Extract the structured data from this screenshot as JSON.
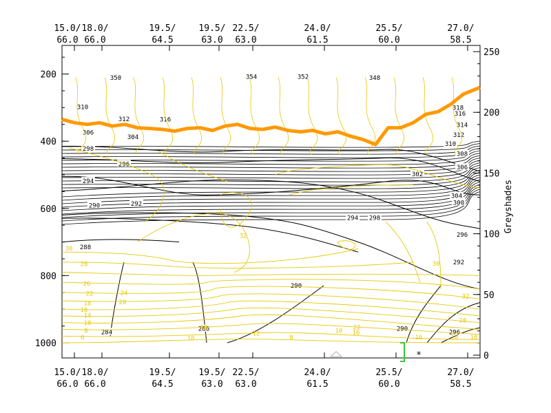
{
  "chart_data": {
    "type": "line",
    "title": "",
    "y_left": {
      "ticks": [
        200,
        400,
        600,
        800,
        1000
      ],
      "range": [
        115,
        1045
      ]
    },
    "y_right": {
      "label": "Greyshades",
      "ticks": [
        0,
        50,
        100,
        150,
        200,
        250
      ],
      "range": [
        0,
        250
      ]
    },
    "x_top_labels": [
      {
        "top": "15.0/",
        "bottom": "66.0"
      },
      {
        "top": "18.0/",
        "bottom": "66.0"
      },
      {
        "top": "19.5/",
        "bottom": "64.5"
      },
      {
        "top": "19.5/",
        "bottom": "63.0"
      },
      {
        "top": "22.5/",
        "bottom": "63.0"
      },
      {
        "top": "24.0/",
        "bottom": "61.5"
      },
      {
        "top": "25.5/",
        "bottom": "60.0"
      },
      {
        "top": "27.0/",
        "bottom": "58.5"
      }
    ],
    "x_bottom_labels": [
      {
        "top": "15.0/",
        "bottom": "66.0"
      },
      {
        "top": "18.0/",
        "bottom": "66.0"
      },
      {
        "top": "19.5/",
        "bottom": "64.5"
      },
      {
        "top": "19.5/",
        "bottom": "63.0"
      },
      {
        "top": "22.5/",
        "bottom": "63.0"
      },
      {
        "top": "24.0/",
        "bottom": "61.5"
      },
      {
        "top": "25.5/",
        "bottom": "60.0"
      },
      {
        "top": "27.0/",
        "bottom": "58.5"
      }
    ],
    "theta_contour_labels": [
      "288",
      "290",
      "292",
      "294",
      "296",
      "298",
      "300",
      "302",
      "304",
      "306",
      "308",
      "310",
      "312",
      "314",
      "316",
      "318",
      "350",
      "352",
      "354",
      "348"
    ],
    "yellow_contour_labels": [
      "6",
      "8",
      "10",
      "12",
      "14",
      "16",
      "18",
      "20",
      "22",
      "24",
      "26",
      "28",
      "30",
      "32"
    ],
    "tropopause_series": {
      "name": "",
      "color": "#ff9900",
      "x": [
        0.0,
        0.03,
        0.06,
        0.09,
        0.12,
        0.15,
        0.18,
        0.21,
        0.24,
        0.27,
        0.3,
        0.33,
        0.36,
        0.39,
        0.42,
        0.45,
        0.48,
        0.51,
        0.54,
        0.57,
        0.6,
        0.63,
        0.66,
        0.69,
        0.72,
        0.75,
        0.78,
        0.81,
        0.84,
        0.87,
        0.9,
        0.93,
        0.96,
        1.0
      ],
      "y": [
        335,
        345,
        350,
        345,
        355,
        350,
        360,
        362,
        365,
        370,
        362,
        360,
        368,
        355,
        350,
        362,
        365,
        358,
        368,
        372,
        368,
        378,
        372,
        385,
        395,
        410,
        360,
        360,
        345,
        320,
        312,
        290,
        260,
        240
      ]
    },
    "colors": {
      "theta": "#000000",
      "yellow": "#e6c800",
      "tropo": "#ff9900",
      "marker_grey": "#b0b0b0",
      "marker_green": "#33cc33",
      "marker_cyan": "#33d6ff"
    }
  }
}
